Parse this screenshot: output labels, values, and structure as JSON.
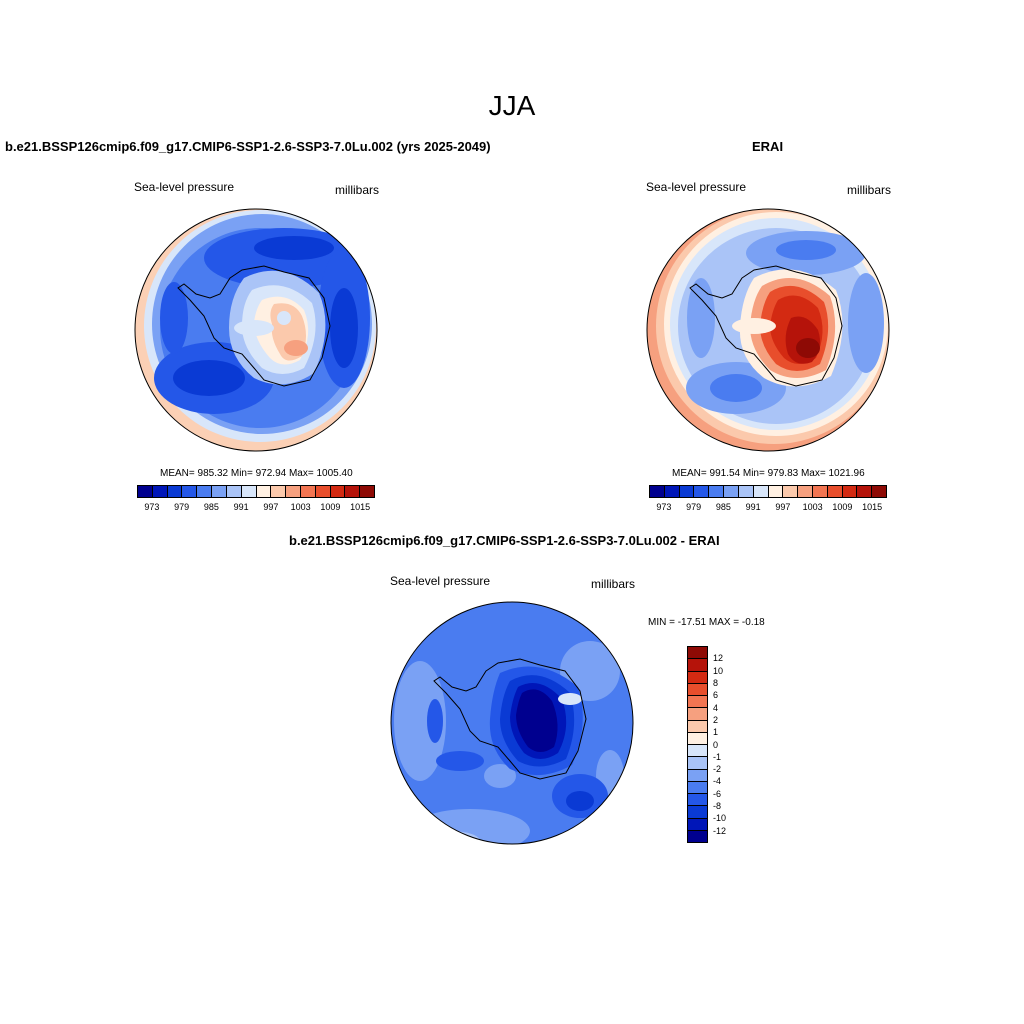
{
  "figure": {
    "title": "JJA",
    "variable_label": "Sea-level pressure",
    "units_label": "millibars"
  },
  "panels": {
    "model": {
      "title": "b.e21.BSSP126cmip6.f09_g17.CMIP6-SSP1-2.6-SSP3-7.0Lu.002 (yrs 2025-2049)",
      "stats": "MEAN= 985.32  Min= 972.94  Max= 1005.40",
      "mean": 985.32,
      "min": 972.94,
      "max": 1005.4
    },
    "obs": {
      "title": "ERAI",
      "stats": "MEAN= 991.54  Min= 979.83  Max= 1021.96",
      "mean": 991.54,
      "min": 979.83,
      "max": 1021.96
    },
    "diff": {
      "title": "b.e21.BSSP126cmip6.f09_g17.CMIP6-SSP1-2.6-SSP3-7.0Lu.002 - ERAI",
      "stats": "MIN = -17.51 MAX =  -0.18",
      "min": -17.51,
      "max": -0.18
    }
  },
  "colorbar_abs": {
    "colors": [
      "#00008f",
      "#0016b8",
      "#0a3ad4",
      "#2457e8",
      "#4a7cf0",
      "#7aa1f4",
      "#aac4f7",
      "#d8e6fa",
      "#fff0e2",
      "#fbc9ac",
      "#f6a07f",
      "#f27552",
      "#e84e2c",
      "#d32a12",
      "#b5130a",
      "#8e0a05"
    ],
    "tick_labels": [
      "973",
      "979",
      "985",
      "991",
      "997",
      "1003",
      "1009",
      "1015"
    ]
  },
  "colorbar_diff": {
    "colors": [
      "#8e0a05",
      "#b5130a",
      "#d32a12",
      "#e84e2c",
      "#f27552",
      "#f6a07f",
      "#fbc9ac",
      "#fff0e2",
      "#d8e6fa",
      "#aac4f7",
      "#7aa1f4",
      "#4a7cf0",
      "#2457e8",
      "#0a3ad4",
      "#0016b8",
      "#00008f"
    ],
    "tick_labels": [
      "12",
      "10",
      "8",
      "6",
      "4",
      "2",
      "1",
      "0",
      "-1",
      "-2",
      "-4",
      "-6",
      "-8",
      "-10",
      "-12"
    ]
  }
}
